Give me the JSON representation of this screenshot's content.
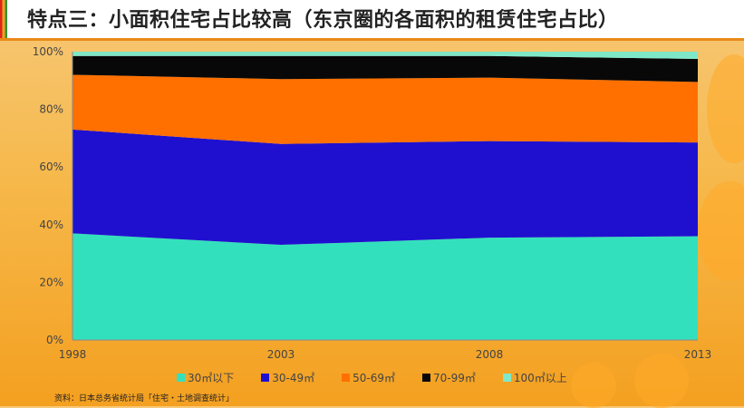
{
  "page_title": "特点三：小面积住宅占比较高（东京圈的各面积的租赁住宅占比）",
  "source_note": "资料：日本总务省统计局「住宅・土地调查统计」",
  "chart_data": {
    "type": "area",
    "stacked": true,
    "categories": [
      "1998",
      "2003",
      "2008",
      "2013"
    ],
    "ylim": [
      0,
      100
    ],
    "yticks": [
      "0%",
      "20%",
      "40%",
      "60%",
      "80%",
      "100%"
    ],
    "grid": false,
    "legend_position": "bottom",
    "series": [
      {
        "name": "30㎡以下",
        "color": "#33e0bd",
        "values": [
          37,
          33,
          35.5,
          36
        ]
      },
      {
        "name": "30-49㎡",
        "color": "#1f10d0",
        "values": [
          36,
          35,
          33.5,
          32.5
        ]
      },
      {
        "name": "50-69㎡",
        "color": "#ff7000",
        "values": [
          19,
          22.5,
          22,
          21
        ]
      },
      {
        "name": "70-99㎡",
        "color": "#080808",
        "values": [
          6.5,
          8,
          7.5,
          8
        ]
      },
      {
        "name": "100㎡以上",
        "color": "#7fe8c8",
        "values": [
          1.5,
          1.5,
          1.5,
          2.5
        ]
      }
    ]
  }
}
